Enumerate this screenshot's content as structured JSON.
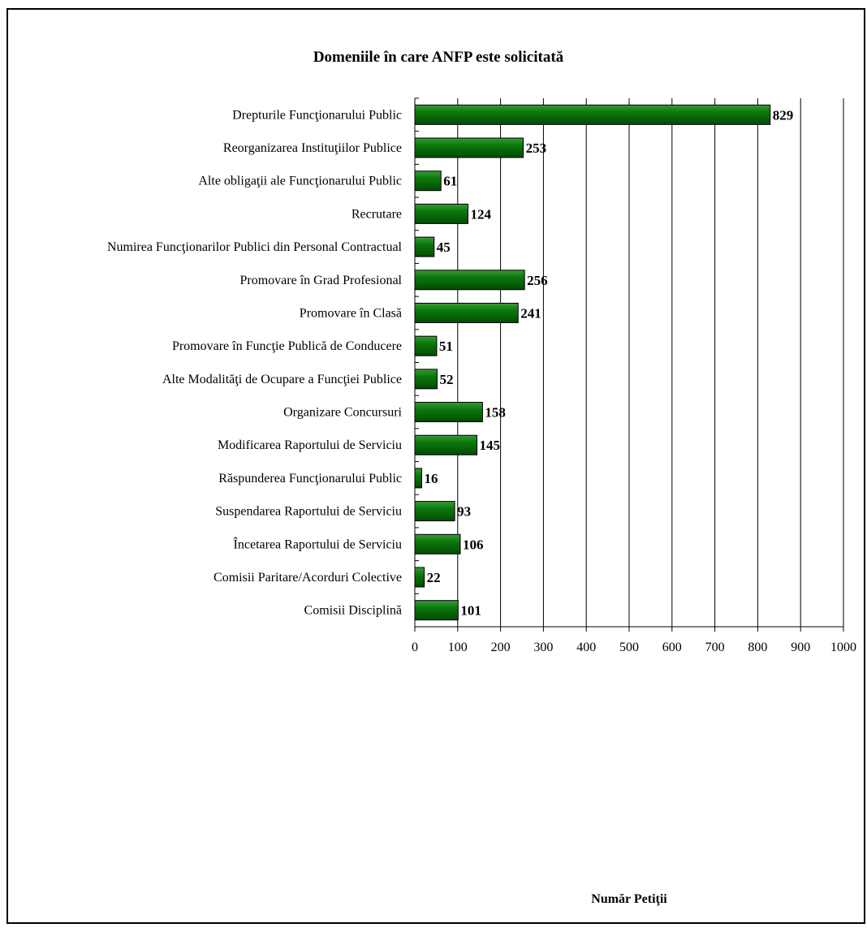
{
  "chart_data": {
    "type": "bar",
    "orientation": "horizontal",
    "title": "Domeniile în care ANFP este solicitată",
    "xlabel": "Număr Petiţii",
    "ylabel": "",
    "xlim": [
      0,
      1000
    ],
    "x_ticks": [
      0,
      100,
      200,
      300,
      400,
      500,
      600,
      700,
      800,
      900,
      1000
    ],
    "grid": "vertical",
    "bar_color": "#0a6b0a",
    "categories": [
      "Drepturile Funcţionarului Public",
      "Reorganizarea Instituţiilor Publice",
      "Alte obligaţii ale  Funcţionarului Public",
      "Recrutare",
      "Numirea Funcţionarilor Publici din Personal Contractual",
      "Promovare  în Grad Profesional",
      "Promovare în Clasă",
      "Promovare în Funcţie Publică de Conducere",
      "Alte Modalităţi de Ocupare a Funcţiei Publice",
      "Organizare Concursuri",
      "Modificarea Raportului de Serviciu",
      "Răspunderea Funcţionarului Public",
      "Suspendarea Raportului de Serviciu",
      "Încetarea Raportului de Serviciu",
      "Comisii Paritare/Acorduri Colective",
      "Comisii Disciplină"
    ],
    "values": [
      829,
      253,
      61,
      124,
      45,
      256,
      241,
      51,
      52,
      158,
      145,
      16,
      93,
      106,
      22,
      101
    ]
  }
}
